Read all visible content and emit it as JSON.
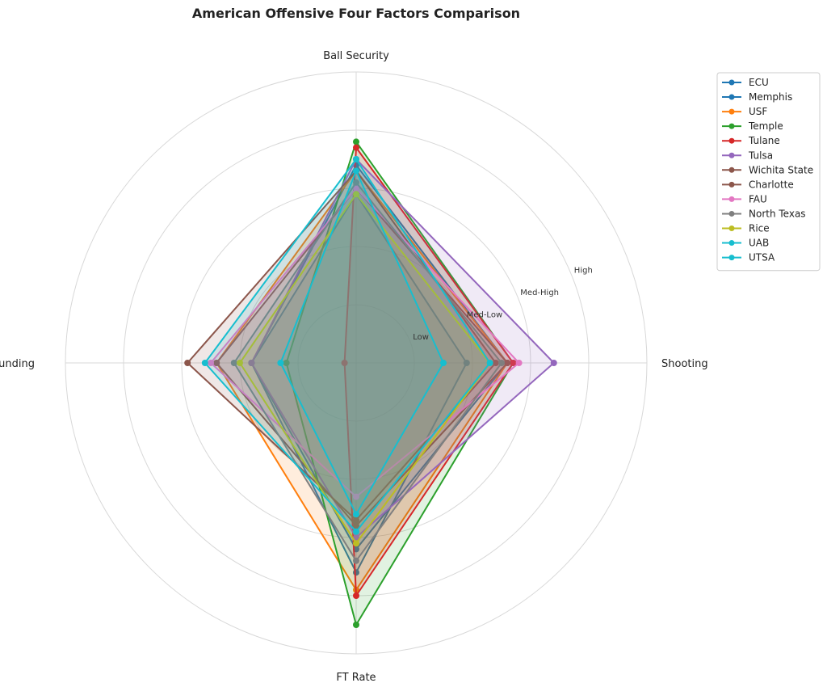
{
  "chart_data": {
    "type": "radar",
    "title": "American Offensive Four Factors Comparison",
    "axes": [
      "Shooting",
      "Ball Security",
      "Off Rebounding",
      "FT Rate"
    ],
    "range": [
      0,
      5
    ],
    "ring_levels": [
      1,
      2,
      3,
      4,
      5
    ],
    "ring_labels": [
      "Low",
      "Med-Low",
      "Med-High",
      "High"
    ],
    "grid": true,
    "legend_position": "top-right outside",
    "series": [
      {
        "name": "ECU",
        "color": "#1f77b4",
        "values": [
          1.9,
          2.9,
          1.8,
          3.6
        ]
      },
      {
        "name": "Memphis",
        "color": "#1f77b4",
        "values": [
          2.6,
          3.4,
          1.8,
          3.2
        ]
      },
      {
        "name": "USF",
        "color": "#ff7f0e",
        "values": [
          2.6,
          3.3,
          2.4,
          3.9
        ]
      },
      {
        "name": "Temple",
        "color": "#2ca02c",
        "values": [
          2.7,
          3.8,
          1.2,
          4.5
        ]
      },
      {
        "name": "Tulane",
        "color": "#d62728",
        "values": [
          2.7,
          3.7,
          0.2,
          4.0
        ]
      },
      {
        "name": "Tulsa",
        "color": "#9467bd",
        "values": [
          3.4,
          3.5,
          1.8,
          3.0
        ]
      },
      {
        "name": "Wichita State",
        "color": "#8c564b",
        "values": [
          2.4,
          3.3,
          2.9,
          2.7
        ]
      },
      {
        "name": "Charlotte",
        "color": "#8c564b",
        "values": [
          2.6,
          3.0,
          2.4,
          2.8
        ]
      },
      {
        "name": "FAU",
        "color": "#e377c2",
        "values": [
          2.8,
          3.0,
          2.5,
          2.3
        ]
      },
      {
        "name": "North Texas",
        "color": "#7f7f7f",
        "values": [
          2.5,
          3.1,
          2.1,
          3.4
        ]
      },
      {
        "name": "Rice",
        "color": "#bcbd22",
        "values": [
          2.3,
          2.9,
          2.0,
          3.1
        ]
      },
      {
        "name": "UAB",
        "color": "#17becf",
        "values": [
          2.3,
          3.5,
          2.6,
          2.9
        ]
      },
      {
        "name": "UTSA",
        "color": "#17becf",
        "values": [
          1.5,
          3.3,
          1.3,
          2.6
        ]
      }
    ]
  }
}
